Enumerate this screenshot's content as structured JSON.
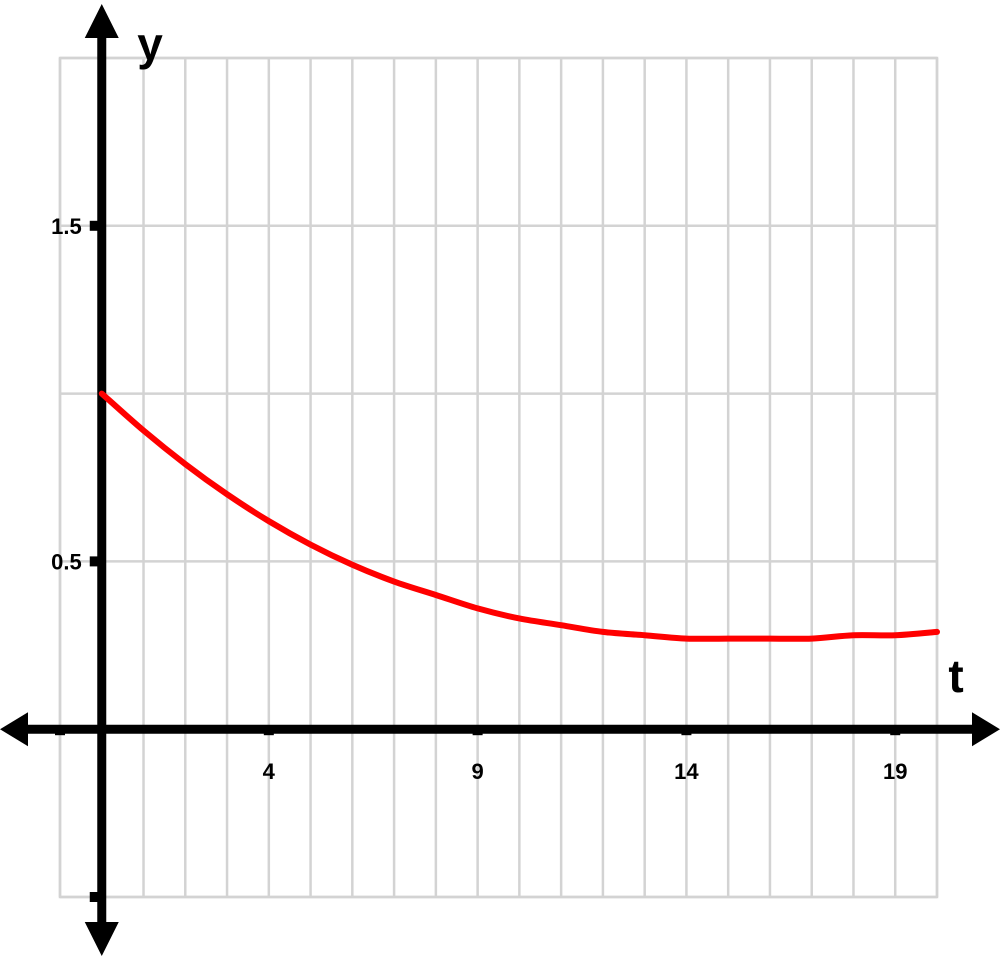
{
  "chart_data": {
    "type": "line",
    "xlabel": "t",
    "ylabel": "y",
    "xlim": [
      -1,
      20
    ],
    "ylim": [
      -0.5,
      2
    ],
    "x_grid_step": 1,
    "y_grid_step": 0.5,
    "grid": true,
    "x_ticks": [
      4,
      9,
      14,
      19
    ],
    "x_tick_labels": [
      "4",
      "9",
      "14",
      "19"
    ],
    "y_ticks": [
      0.5,
      1.5
    ],
    "y_tick_labels": [
      "0.5",
      "1.5"
    ],
    "line_color": "#ff0000",
    "series": [
      {
        "x": [
          0,
          1,
          2,
          3,
          4,
          5,
          6,
          7,
          8,
          9,
          10,
          11,
          12,
          13,
          14,
          15,
          16,
          17,
          18,
          19,
          20
        ],
        "values": [
          1.0,
          0.89,
          0.79,
          0.7,
          0.62,
          0.55,
          0.49,
          0.44,
          0.4,
          0.36,
          0.33,
          0.31,
          0.29,
          0.28,
          0.27,
          0.27,
          0.27,
          0.27,
          0.28,
          0.28,
          0.29
        ]
      }
    ]
  }
}
